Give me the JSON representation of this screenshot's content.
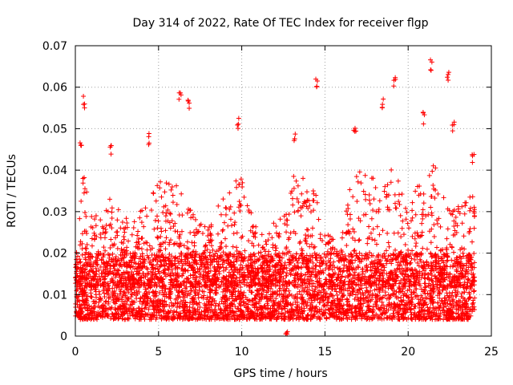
{
  "chart_data": {
    "type": "scatter",
    "title": "Day 314 of 2022, Rate Of TEC Index for receiver flgp",
    "xlabel": "GPS time / hours",
    "ylabel": "ROTI / TECUs",
    "xlim": [
      0,
      25
    ],
    "ylim": [
      0,
      0.07
    ],
    "x_ticks": [
      0,
      5,
      10,
      15,
      20,
      25
    ],
    "x_tick_labels": [
      "0",
      "5",
      "10",
      "15",
      "20",
      "25"
    ],
    "y_ticks": [
      0,
      0.01,
      0.02,
      0.03,
      0.04,
      0.05,
      0.06,
      0.07
    ],
    "y_tick_labels": [
      "0",
      "0.01",
      "0.02",
      "0.03",
      "0.04",
      "0.05",
      "0.06",
      "0.07"
    ],
    "grid": true,
    "marker": "+",
    "color": "#ff0000",
    "series": [
      {
        "name": "ROTI",
        "x_range_hours": [
          0,
          24
        ],
        "baseline_range": [
          0.004,
          0.02
        ],
        "notable_points": [
          {
            "x": 0.5,
            "y": 0.058
          },
          {
            "x": 0.3,
            "y": 0.048
          },
          {
            "x": 2.1,
            "y": 0.046
          },
          {
            "x": 4.4,
            "y": 0.049
          },
          {
            "x": 6.3,
            "y": 0.06
          },
          {
            "x": 6.8,
            "y": 0.057
          },
          {
            "x": 9.8,
            "y": 0.053
          },
          {
            "x": 13.2,
            "y": 0.05
          },
          {
            "x": 14.5,
            "y": 0.063
          },
          {
            "x": 16.8,
            "y": 0.051
          },
          {
            "x": 18.5,
            "y": 0.058
          },
          {
            "x": 19.2,
            "y": 0.063
          },
          {
            "x": 20.9,
            "y": 0.054
          },
          {
            "x": 21.4,
            "y": 0.067
          },
          {
            "x": 22.4,
            "y": 0.064
          },
          {
            "x": 22.7,
            "y": 0.052
          },
          {
            "x": 23.9,
            "y": 0.044
          },
          {
            "x": 12.7,
            "y": 0.0015
          }
        ],
        "peak_envelope": [
          [
            0,
            0.02
          ],
          [
            0.5,
            0.04
          ],
          [
            1.0,
            0.032
          ],
          [
            1.5,
            0.028
          ],
          [
            2.0,
            0.035
          ],
          [
            2.7,
            0.03
          ],
          [
            3.5,
            0.028
          ],
          [
            4.5,
            0.036
          ],
          [
            5.5,
            0.038
          ],
          [
            6.3,
            0.036
          ],
          [
            7.0,
            0.03
          ],
          [
            8.0,
            0.026
          ],
          [
            8.8,
            0.034
          ],
          [
            9.8,
            0.04
          ],
          [
            10.8,
            0.028
          ],
          [
            11.5,
            0.024
          ],
          [
            12.5,
            0.032
          ],
          [
            13.2,
            0.04
          ],
          [
            13.8,
            0.038
          ],
          [
            14.5,
            0.034
          ],
          [
            15.0,
            0.026
          ],
          [
            15.8,
            0.022
          ],
          [
            16.5,
            0.036
          ],
          [
            17.0,
            0.04
          ],
          [
            17.8,
            0.038
          ],
          [
            18.5,
            0.044
          ],
          [
            19.2,
            0.04
          ],
          [
            19.8,
            0.034
          ],
          [
            20.5,
            0.036
          ],
          [
            21.0,
            0.04
          ],
          [
            21.5,
            0.044
          ],
          [
            22.0,
            0.036
          ],
          [
            22.6,
            0.03
          ],
          [
            23.2,
            0.032
          ],
          [
            24.0,
            0.036
          ]
        ]
      }
    ]
  }
}
